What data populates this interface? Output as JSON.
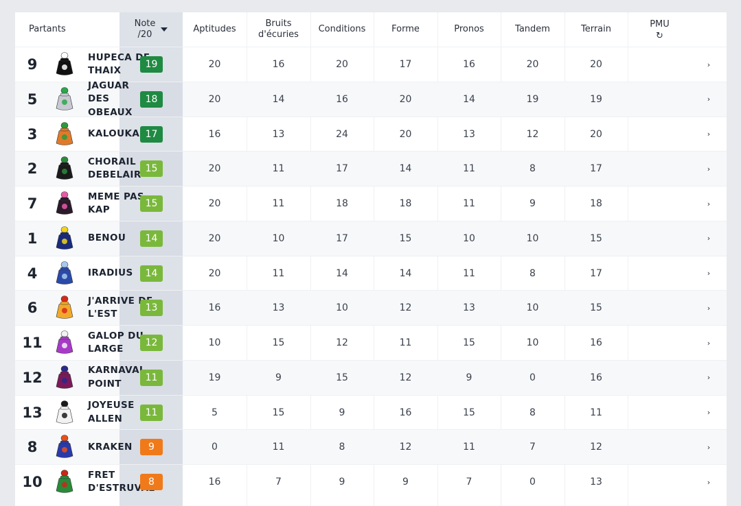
{
  "header": {
    "partants": "Partants",
    "note_line1": "Note",
    "note_line2": "/20",
    "aptitudes": "Aptitudes",
    "bruits_line1": "Bruits",
    "bruits_line2": "d'écuries",
    "conditions": "Conditions",
    "forme": "Forme",
    "pronos": "Pronos",
    "tandem": "Tandem",
    "terrain": "Terrain",
    "pmu": "PMU",
    "refresh_icon": "↻"
  },
  "colors": {
    "note_high": "#1f8a42",
    "note_mid": "#7ab83c",
    "note_low": "#f07a1a"
  },
  "rows": [
    {
      "num": "9",
      "name": "HUPECA DE THAIX",
      "note": "19",
      "level": "high",
      "silk": [
        "#111111",
        "#ffffff"
      ],
      "aptitudes": "20",
      "bruits": "16",
      "conditions": "20",
      "forme": "17",
      "pronos": "16",
      "tandem": "20",
      "terrain": "20",
      "chevron": "›"
    },
    {
      "num": "5",
      "name": "JAGUAR DES OBEAUX",
      "note": "18",
      "level": "high",
      "silk": [
        "#c9c9d2",
        "#2aa84a"
      ],
      "aptitudes": "20",
      "bruits": "14",
      "conditions": "16",
      "forme": "20",
      "pronos": "14",
      "tandem": "19",
      "terrain": "19",
      "chevron": "›"
    },
    {
      "num": "3",
      "name": "KALOUKA",
      "note": "17",
      "level": "high",
      "silk": [
        "#e07a2a",
        "#2c9a3c"
      ],
      "aptitudes": "16",
      "bruits": "13",
      "conditions": "24",
      "forme": "20",
      "pronos": "13",
      "tandem": "12",
      "terrain": "20",
      "chevron": "›"
    },
    {
      "num": "2",
      "name": "CHORAIL DEBELAIR",
      "note": "15",
      "level": "mid",
      "silk": [
        "#1a1a1a",
        "#2c8a3c"
      ],
      "aptitudes": "20",
      "bruits": "11",
      "conditions": "17",
      "forme": "14",
      "pronos": "11",
      "tandem": "8",
      "terrain": "17",
      "chevron": "›"
    },
    {
      "num": "7",
      "name": "MEME PAS KAP",
      "note": "15",
      "level": "mid",
      "silk": [
        "#2a1a2a",
        "#e85aa8"
      ],
      "aptitudes": "20",
      "bruits": "11",
      "conditions": "18",
      "forme": "18",
      "pronos": "11",
      "tandem": "9",
      "terrain": "18",
      "chevron": "›"
    },
    {
      "num": "1",
      "name": "BENOU",
      "note": "14",
      "level": "mid",
      "silk": [
        "#1a2a7a",
        "#f2d21a"
      ],
      "aptitudes": "20",
      "bruits": "10",
      "conditions": "17",
      "forme": "15",
      "pronos": "10",
      "tandem": "10",
      "terrain": "15",
      "chevron": "›"
    },
    {
      "num": "4",
      "name": "IRADIUS",
      "note": "14",
      "level": "mid",
      "silk": [
        "#2a4aa8",
        "#a8c8ee"
      ],
      "aptitudes": "20",
      "bruits": "11",
      "conditions": "14",
      "forme": "14",
      "pronos": "11",
      "tandem": "8",
      "terrain": "17",
      "chevron": "›"
    },
    {
      "num": "6",
      "name": "J'ARRIVE DE L'EST",
      "note": "13",
      "level": "mid",
      "silk": [
        "#f2a82a",
        "#d8281a"
      ],
      "aptitudes": "16",
      "bruits": "13",
      "conditions": "10",
      "forme": "12",
      "pronos": "13",
      "tandem": "10",
      "terrain": "15",
      "chevron": "›"
    },
    {
      "num": "11",
      "name": "GALOP DU LARGE",
      "note": "12",
      "level": "mid",
      "silk": [
        "#a83ac8",
        "#f2f2f2"
      ],
      "aptitudes": "10",
      "bruits": "15",
      "conditions": "12",
      "forme": "11",
      "pronos": "15",
      "tandem": "10",
      "terrain": "16",
      "chevron": "›"
    },
    {
      "num": "12",
      "name": "KARNAVAL POINT",
      "note": "11",
      "level": "mid",
      "silk": [
        "#7a1a5a",
        "#2a2a8a"
      ],
      "aptitudes": "19",
      "bruits": "9",
      "conditions": "15",
      "forme": "12",
      "pronos": "9",
      "tandem": "0",
      "terrain": "16",
      "chevron": "›"
    },
    {
      "num": "13",
      "name": "JOYEUSE ALLEN",
      "note": "11",
      "level": "mid",
      "silk": [
        "#f2f2f2",
        "#1a1a1a"
      ],
      "aptitudes": "5",
      "bruits": "15",
      "conditions": "9",
      "forme": "16",
      "pronos": "15",
      "tandem": "8",
      "terrain": "11",
      "chevron": "›"
    },
    {
      "num": "8",
      "name": "KRAKEN",
      "note": "9",
      "level": "low",
      "silk": [
        "#2a3aa8",
        "#e8501a"
      ],
      "aptitudes": "0",
      "bruits": "11",
      "conditions": "8",
      "forme": "12",
      "pronos": "11",
      "tandem": "7",
      "terrain": "12",
      "chevron": "›"
    },
    {
      "num": "10",
      "name": "FRET D'ESTRUVAL",
      "note": "8",
      "level": "low",
      "silk": [
        "#2a8a3a",
        "#c8281a"
      ],
      "aptitudes": "16",
      "bruits": "7",
      "conditions": "9",
      "forme": "9",
      "pronos": "7",
      "tandem": "0",
      "terrain": "13",
      "chevron": "›"
    }
  ]
}
